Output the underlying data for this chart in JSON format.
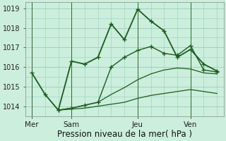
{
  "title": "",
  "xlabel": "Pression niveau de la mer( hPa )",
  "bg_color": "#cceedd",
  "grid_color": "#99ccbb",
  "line_color": "#1a5c1a",
  "ylim": [
    1013.5,
    1019.3
  ],
  "xtick_labels": [
    "Mer",
    "Sam",
    "Jeu",
    "Ven"
  ],
  "xtick_positions": [
    0,
    3,
    8,
    12
  ],
  "ytick_values": [
    1014,
    1015,
    1016,
    1017,
    1018,
    1019
  ],
  "series": [
    {
      "x": [
        0,
        1,
        2,
        3,
        4,
        5,
        6,
        7,
        8,
        9,
        10,
        11,
        12,
        13,
        14
      ],
      "y": [
        1015.7,
        1014.6,
        1013.8,
        1016.3,
        1016.15,
        1016.5,
        1018.2,
        1017.4,
        1018.95,
        1018.35,
        1017.85,
        1016.5,
        1016.9,
        1016.15,
        1015.8
      ],
      "marker": "+",
      "linewidth": 1.3,
      "markersize": 4.5
    },
    {
      "x": [
        2,
        3,
        4,
        5,
        6,
        7,
        8,
        9,
        10,
        11,
        12,
        13,
        14
      ],
      "y": [
        1013.8,
        1013.9,
        1014.05,
        1014.2,
        1016.0,
        1016.5,
        1016.85,
        1017.05,
        1016.7,
        1016.6,
        1017.1,
        1015.85,
        1015.75
      ],
      "marker": "+",
      "linewidth": 1.0,
      "markersize": 4.0
    },
    {
      "x": [
        2,
        3,
        4,
        5,
        6,
        7,
        8,
        9,
        10,
        11,
        12,
        13,
        14
      ],
      "y": [
        1013.8,
        1013.9,
        1014.05,
        1014.2,
        1014.6,
        1014.95,
        1015.35,
        1015.65,
        1015.85,
        1015.95,
        1015.9,
        1015.7,
        1015.65
      ],
      "marker": null,
      "linewidth": 0.9,
      "markersize": 0
    },
    {
      "x": [
        2,
        3,
        4,
        5,
        6,
        7,
        8,
        9,
        10,
        11,
        12,
        13,
        14
      ],
      "y": [
        1013.8,
        1013.85,
        1013.9,
        1014.0,
        1014.1,
        1014.2,
        1014.4,
        1014.55,
        1014.65,
        1014.75,
        1014.85,
        1014.75,
        1014.65
      ],
      "marker": null,
      "linewidth": 0.9,
      "markersize": 0
    }
  ],
  "vlines": [
    0,
    3,
    8,
    12
  ],
  "font_size_xlabel": 8.5,
  "font_size_ytick": 7,
  "font_size_xtick": 7.5
}
